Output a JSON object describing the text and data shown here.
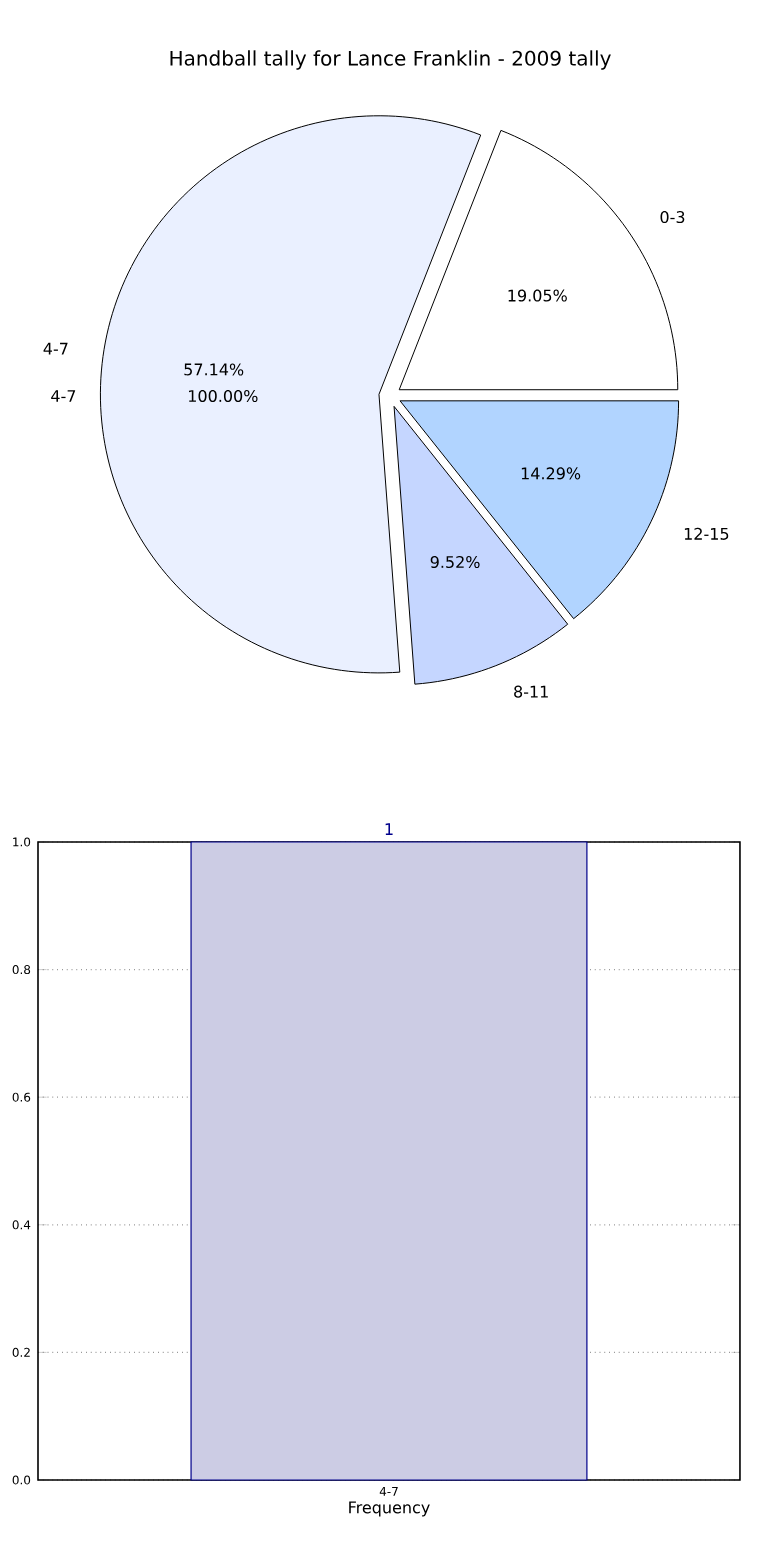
{
  "chart_data": [
    {
      "type": "pie",
      "title": "Handball tally for Lance Franklin - 2009 tally",
      "categories": [
        "0-3",
        "4-7",
        "8-11",
        "12-15"
      ],
      "values": [
        19.05,
        57.14,
        9.52,
        14.29
      ],
      "colors": [
        "#ffffff",
        "#eaf0ff",
        "#c5d6ff",
        "#b1d4ff"
      ],
      "value_labels": [
        "19.05%",
        "57.14%",
        "9.52%",
        "14.29%"
      ],
      "annotations": [
        "4-7",
        "100.00%"
      ]
    },
    {
      "type": "bar",
      "categories": [
        "4-7"
      ],
      "values": [
        1
      ],
      "color": "#ccccE4",
      "xlabel": "Frequency",
      "ylim": [
        0,
        1
      ],
      "yticks": [
        {
          "value": 0,
          "label": "0.0"
        },
        {
          "value": 0.2,
          "label": "0.2"
        },
        {
          "value": 0.4,
          "label": "0.4"
        },
        {
          "value": 0.6,
          "label": "0.6"
        },
        {
          "value": 0.8,
          "label": "0.8"
        },
        {
          "value": 1,
          "label": "1.0"
        }
      ],
      "grid": true,
      "data_labels": true
    }
  ]
}
